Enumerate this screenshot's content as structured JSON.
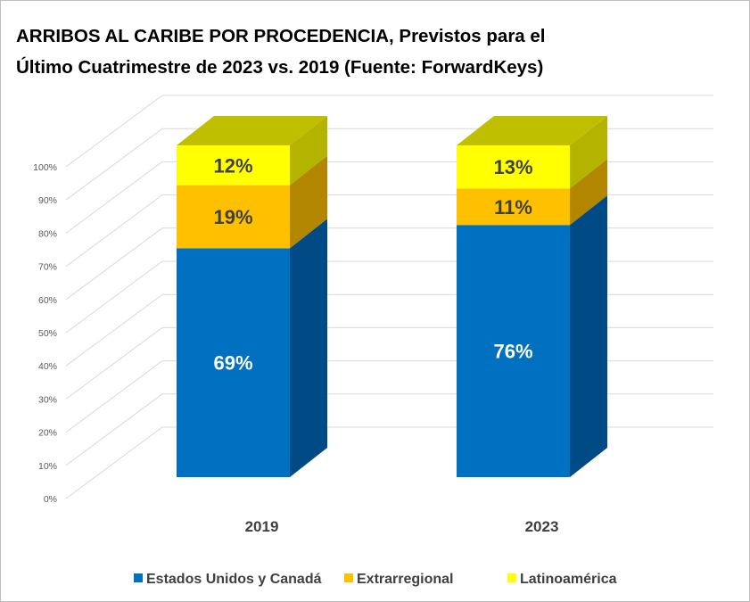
{
  "chart_data": {
    "type": "bar",
    "stacked": true,
    "percent": true,
    "three_d": true,
    "title_lines": [
      "ARRIBOS AL CARIBE POR PROCEDENCIA, Previstos para el",
      "Último Cuatrimestre de 2023 vs. 2019 (Fuente: ForwardKeys)"
    ],
    "categories": [
      "2019",
      "2023"
    ],
    "series": [
      {
        "name": "Estados Unidos y Canadá",
        "values": [
          69,
          76
        ],
        "labels": [
          "69%",
          "76%"
        ],
        "color": "#0070C0",
        "side_color": "#004A85",
        "label_color": "#FFFFFF"
      },
      {
        "name": "Extrarregional",
        "values": [
          19,
          11
        ],
        "labels": [
          "19%",
          "11%"
        ],
        "color": "#FFC000",
        "side_color": "#B38600",
        "label_color": "#404040"
      },
      {
        "name": "Latinoamérica",
        "values": [
          12,
          13
        ],
        "labels": [
          "12%",
          "13%"
        ],
        "color": "#FFFF00",
        "side_color": "#B3B300",
        "label_color": "#404040"
      }
    ],
    "top_color": "#BFBF00",
    "ylim": [
      0,
      100
    ],
    "yticks": [
      "0%",
      "10%",
      "20%",
      "30%",
      "40%",
      "50%",
      "60%",
      "70%",
      "80%",
      "90%",
      "100%"
    ],
    "grid": true,
    "legend": "bottom"
  }
}
